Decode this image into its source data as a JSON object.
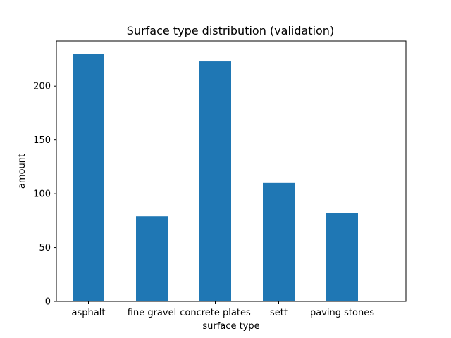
{
  "chart_data": {
    "type": "bar",
    "title": "Surface type distribution (validation)",
    "xlabel": "surface type",
    "ylabel": "amount",
    "categories": [
      "asphalt",
      "fine gravel",
      "concrete plates",
      "sett",
      "paving stones"
    ],
    "series": [
      {
        "name": "amount",
        "values": [
          230,
          79,
          223,
          110,
          82
        ]
      }
    ],
    "ylim": [
      0,
      242
    ],
    "yticks": [
      0,
      50,
      100,
      150,
      200
    ],
    "grid": false,
    "bar_color": "#1f77b4"
  }
}
